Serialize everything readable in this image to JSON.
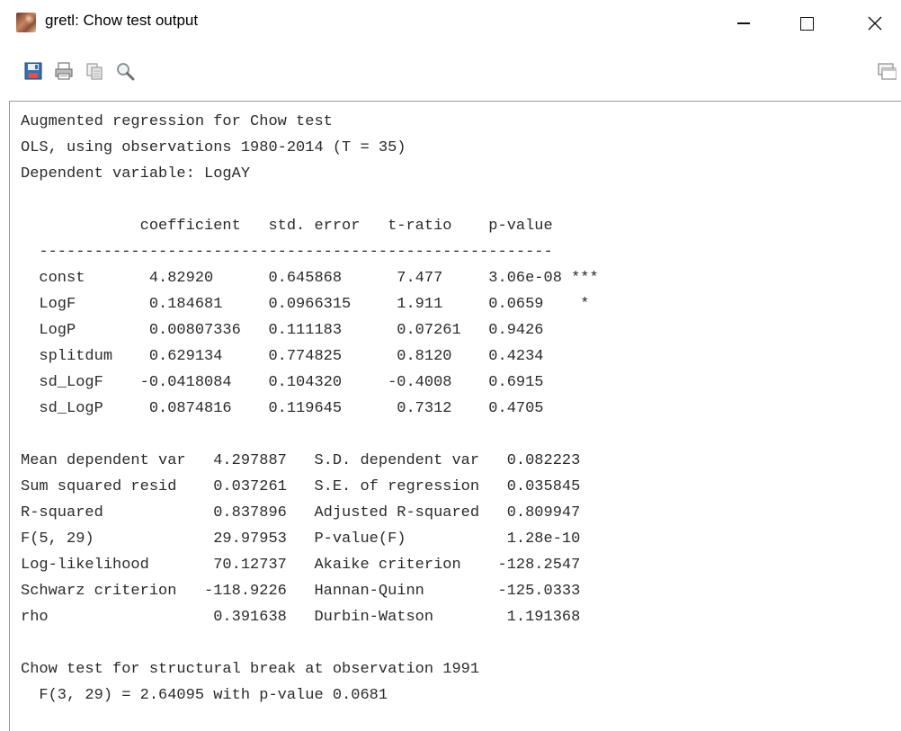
{
  "window": {
    "title": "gretl: Chow test output"
  },
  "toolbar": {
    "icons": [
      "save-icon",
      "print-icon",
      "copy-icon",
      "find-icon",
      "windows-icon"
    ]
  },
  "output": {
    "lines": [
      "Augmented regression for Chow test",
      "OLS, using observations 1980-2014 (T = 35)",
      "Dependent variable: LogAY",
      "",
      "             coefficient   std. error   t-ratio    p-value",
      "  --------------------------------------------------------",
      "  const       4.82920      0.645868      7.477     3.06e-08 ***",
      "  LogF        0.184681     0.0966315     1.911     0.0659    *",
      "  LogP        0.00807336   0.111183      0.07261   0.9426",
      "  splitdum    0.629134     0.774825      0.8120    0.4234",
      "  sd_LogF    -0.0418084    0.104320     -0.4008    0.6915",
      "  sd_LogP     0.0874816    0.119645      0.7312    0.4705",
      "",
      "Mean dependent var   4.297887   S.D. dependent var   0.082223",
      "Sum squared resid    0.037261   S.E. of regression   0.035845",
      "R-squared            0.837896   Adjusted R-squared   0.809947",
      "F(5, 29)             29.97953   P-value(F)           1.28e-10",
      "Log-likelihood       70.12737   Akaike criterion    -128.2547",
      "Schwarz criterion   -118.9226   Hannan-Quinn        -125.0333",
      "rho                  0.391638   Durbin-Watson        1.191368",
      "",
      "Chow test for structural break at observation 1991",
      "  F(3, 29) = 2.64095 with p-value 0.0681"
    ]
  },
  "colors": {
    "text": "#2a2a2a",
    "border": "#9a9a9a"
  }
}
